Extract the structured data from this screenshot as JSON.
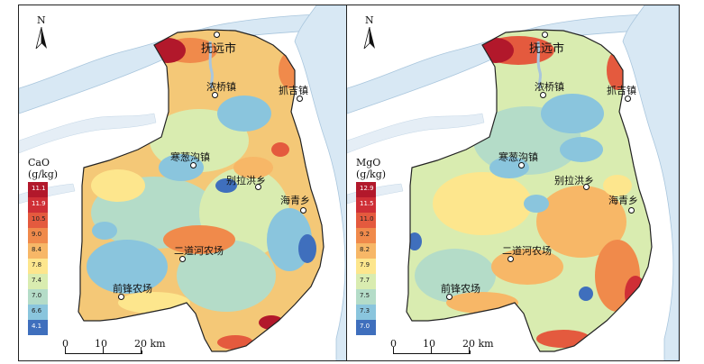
{
  "north_label": "N",
  "scale": {
    "ticks": [
      "0",
      "10",
      "20 km"
    ]
  },
  "panels": [
    {
      "id": "cao",
      "legend_title": [
        "CaO",
        "(g/kg)"
      ],
      "legend": [
        {
          "label": "11.1",
          "color": "#b2182b"
        },
        {
          "label": "11.9",
          "color": "#cf2f36"
        },
        {
          "label": "10.5",
          "color": "#e45a3e"
        },
        {
          "label": "9.0",
          "color": "#f08a4b"
        },
        {
          "label": "8.4",
          "color": "#f7b767"
        },
        {
          "label": "7.8",
          "color": "#fde68d"
        },
        {
          "label": "7.4",
          "color": "#d9ecb0"
        },
        {
          "label": "7.0",
          "color": "#b4dcc8"
        },
        {
          "label": "6.6",
          "color": "#8ac5dd"
        },
        {
          "label": "4.1",
          "color": "#3f6fbd"
        }
      ],
      "towns": [
        {
          "name": "抚远市",
          "kind": "city"
        },
        {
          "name": "浓桥镇",
          "kind": "town"
        },
        {
          "name": "抓吉镇",
          "kind": "town"
        },
        {
          "name": "寒葱沟镇",
          "kind": "town"
        },
        {
          "name": "别拉洪乡",
          "kind": "town"
        },
        {
          "name": "海青乡",
          "kind": "town"
        },
        {
          "name": "二道河农场",
          "kind": "town"
        },
        {
          "name": "前锋农场",
          "kind": "town"
        }
      ]
    },
    {
      "id": "mgo",
      "legend_title": [
        "MgO",
        "(g/kg)"
      ],
      "legend": [
        {
          "label": "12.9",
          "color": "#b2182b"
        },
        {
          "label": "11.5",
          "color": "#cf2f36"
        },
        {
          "label": "11.0",
          "color": "#e45a3e"
        },
        {
          "label": "9.2",
          "color": "#f08a4b"
        },
        {
          "label": "8.2",
          "color": "#f7b767"
        },
        {
          "label": "7.9",
          "color": "#fde68d"
        },
        {
          "label": "7.7",
          "color": "#d9ecb0"
        },
        {
          "label": "7.5",
          "color": "#b4dcc8"
        },
        {
          "label": "7.3",
          "color": "#8ac5dd"
        },
        {
          "label": "7.0",
          "color": "#3f6fbd"
        }
      ],
      "towns": [
        {
          "name": "抚远市",
          "kind": "city"
        },
        {
          "name": "浓桥镇",
          "kind": "town"
        },
        {
          "name": "抓吉镇",
          "kind": "town"
        },
        {
          "name": "寒葱沟镇",
          "kind": "town"
        },
        {
          "name": "别拉洪乡",
          "kind": "town"
        },
        {
          "name": "海青乡",
          "kind": "town"
        },
        {
          "name": "二道河农场",
          "kind": "town"
        },
        {
          "name": "前锋农场",
          "kind": "town"
        }
      ]
    }
  ],
  "colors": {
    "river": "#d8e8f4",
    "river_edge": "#a9c6dd"
  }
}
